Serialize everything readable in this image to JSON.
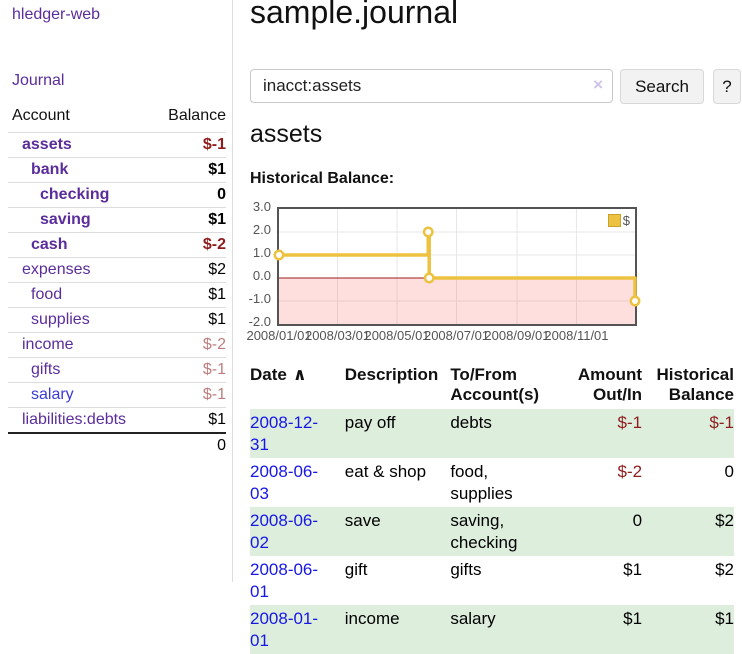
{
  "app": {
    "brand": "hledger-web"
  },
  "sidebar": {
    "journal_link": "Journal",
    "headers": {
      "account": "Account",
      "balance": "Balance"
    },
    "accounts": [
      {
        "name": "assets",
        "balance": "$-1"
      },
      {
        "name": "bank",
        "balance": "$1"
      },
      {
        "name": "checking",
        "balance": "0"
      },
      {
        "name": "saving",
        "balance": "$1"
      },
      {
        "name": "cash",
        "balance": "$-2"
      },
      {
        "name": "expenses",
        "balance": "$2"
      },
      {
        "name": "food",
        "balance": "$1"
      },
      {
        "name": "supplies",
        "balance": "$1"
      },
      {
        "name": "income",
        "balance": "$-2"
      },
      {
        "name": "gifts",
        "balance": "$-1"
      },
      {
        "name": "salary",
        "balance": "$-1"
      },
      {
        "name": "liabilities:debts",
        "balance": "$1"
      }
    ],
    "total": "0"
  },
  "main": {
    "title": "sample.journal",
    "search": {
      "value": "inacct:assets",
      "clear_icon": "×",
      "search_button": "Search",
      "help_button": "?"
    },
    "section_title": "assets",
    "chart_label": "Historical Balance:"
  },
  "chart_data": {
    "type": "line",
    "step": true,
    "title": "Historical Balance",
    "series": [
      {
        "name": "$",
        "points": [
          {
            "x": "2008-01-01",
            "y": 1
          },
          {
            "x": "2008-06-02",
            "y": 2
          },
          {
            "x": "2008-06-03",
            "y": 0
          },
          {
            "x": "2008-12-31",
            "y": -1
          }
        ]
      }
    ],
    "xrange": [
      "2008-01-01",
      "2008-12-31"
    ],
    "ylim": [
      -2,
      3
    ],
    "yticks": [
      "3.0",
      "2.0",
      "1.0",
      "0.0",
      "-1.0",
      "-2.0"
    ],
    "xticks": [
      "2008/01/01",
      "2008/03/01",
      "2008/05/01",
      "2008/07/01",
      "2008/09/01",
      "2008/11/01"
    ],
    "legend_position": "top-right",
    "grid": true,
    "line_color": "#edc240",
    "zero_line_color": "#9b1c1c",
    "negative_region_color": "rgba(255,70,70,0.18)"
  },
  "transactions": {
    "sort_caret": "∧",
    "headers": {
      "date": "Date",
      "description": "Description",
      "to_from": "To/From Account(s)",
      "amount": "Amount Out/In",
      "historical": "Historical Balance"
    },
    "rows": [
      {
        "date": "2008-12-31",
        "description": "pay off",
        "to_from": "debts",
        "amount": "$-1",
        "historical": "$-1"
      },
      {
        "date": "2008-06-03",
        "description": "eat & shop",
        "to_from": "food, supplies",
        "amount": "$-2",
        "historical": "0"
      },
      {
        "date": "2008-06-02",
        "description": "save",
        "to_from": "saving, checking",
        "amount": "0",
        "historical": "$2"
      },
      {
        "date": "2008-06-01",
        "description": "gift",
        "to_from": "gifts",
        "amount": "$1",
        "historical": "$2"
      },
      {
        "date": "2008-01-01",
        "description": "income",
        "to_from": "salary",
        "amount": "$1",
        "historical": "$1"
      }
    ]
  },
  "colors": {
    "link_purple": "#5b2d9b",
    "link_blue": "#1717e6",
    "negative_dark_red": "#8f1d1d",
    "negative_light_red": "#bd7e7e",
    "row_stripe_green": "#ddeedd",
    "chart_line_yellow": "#edc240",
    "chart_axis_text": "#545454",
    "divider_gray": "#dddddd"
  }
}
